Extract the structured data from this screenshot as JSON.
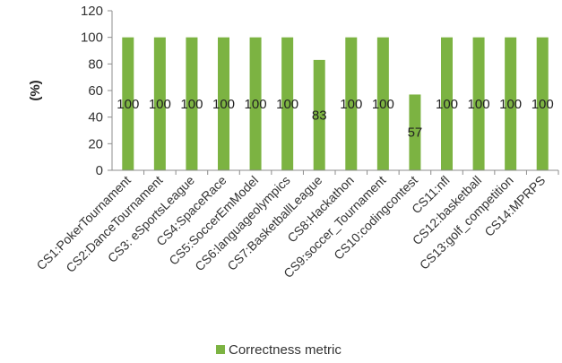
{
  "chart_data": {
    "type": "bar",
    "ylabel": "(%)",
    "ylim": [
      0,
      120
    ],
    "yticks": [
      0,
      20,
      40,
      60,
      80,
      100,
      120
    ],
    "grid": false,
    "legend_position": "bottom",
    "categories": [
      "CS1:PokerTournament",
      "CS2:DanceTournament",
      "CS3: eSportsLeague",
      "CS4:SpaceRace",
      "CS5:SoccerEmModel",
      "CS6:languageolympics",
      "CS7:BasketballLeague",
      "CS8:Hackathon",
      "CS9:soccer_Tournament",
      "CS10:codingcontest",
      "CS11:nfl",
      "CS12:basketball",
      "CS13:golf_competition",
      "CS14:MPRPS"
    ],
    "series": [
      {
        "name": "Correctness metric",
        "color": "#7cb342",
        "values": [
          100,
          100,
          100,
          100,
          100,
          100,
          83,
          100,
          100,
          57,
          100,
          100,
          100,
          100
        ]
      }
    ]
  }
}
